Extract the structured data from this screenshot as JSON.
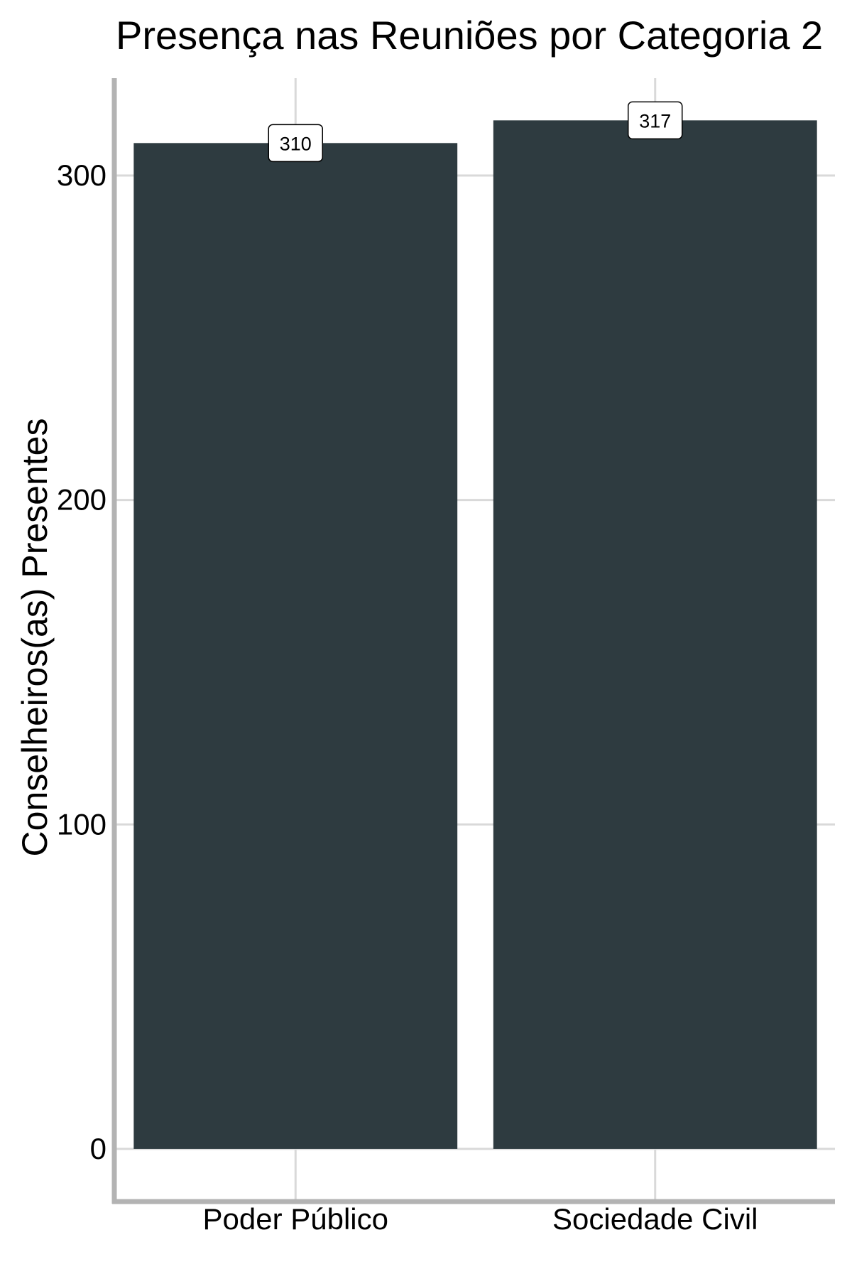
{
  "chart_data": {
    "type": "bar",
    "title": "Presença nas Reuniões por Categoria 2",
    "xlabel": "",
    "ylabel": "Conselheiros(as) Presentes",
    "categories": [
      "Poder Público",
      "Sociedade Civil"
    ],
    "values": [
      310,
      317
    ],
    "data_labels": [
      "310",
      "317"
    ],
    "yticks": [
      0,
      100,
      200,
      300
    ],
    "ytick_labels": [
      "0",
      "100",
      "200",
      "300"
    ],
    "ylim": [
      -16,
      330
    ],
    "grid": true,
    "legend": "none",
    "colors": {
      "bar": "#2e3b40",
      "grid": "#d9d9d9",
      "axis": "#b3b3b3",
      "label_bg": "#ffffff",
      "label_border": "#000000"
    }
  }
}
